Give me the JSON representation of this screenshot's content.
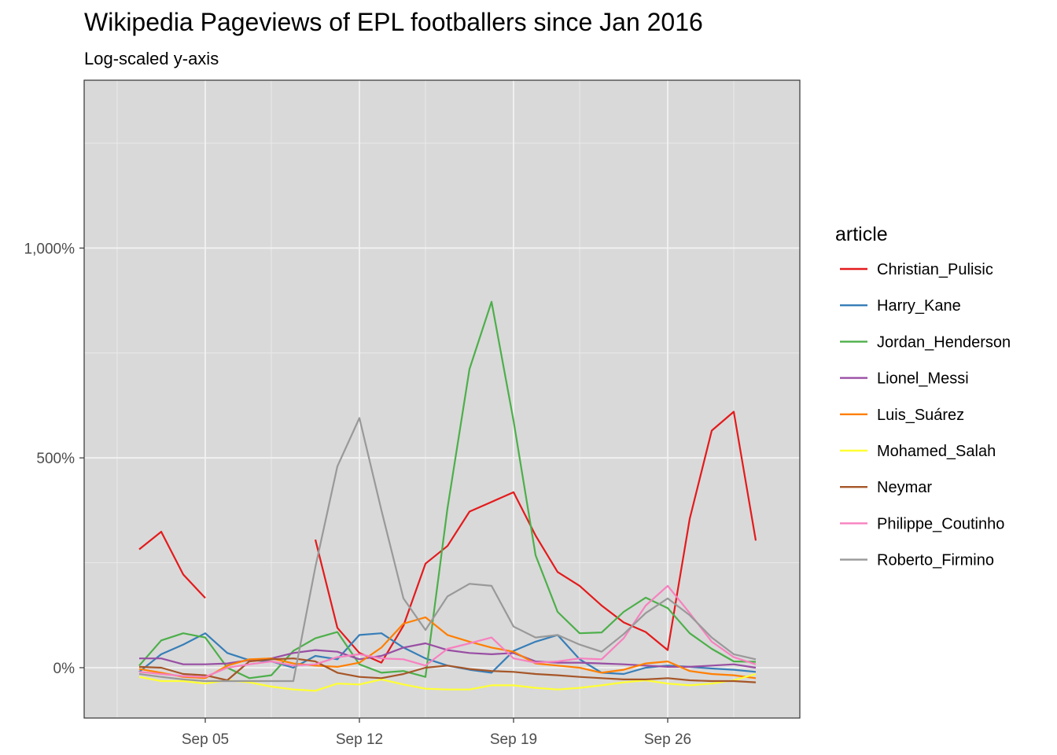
{
  "chart_data": {
    "type": "line",
    "title": "Wikipedia Pageviews of EPL footballers since Jan 2016",
    "subtitle": "Log-scaled y-axis",
    "xlabel": "",
    "ylabel": "",
    "x": [
      "2019-09-02",
      "2019-09-03",
      "2019-09-04",
      "2019-09-05",
      "2019-09-06",
      "2019-09-07",
      "2019-09-08",
      "2019-09-09",
      "2019-09-10",
      "2019-09-11",
      "2019-09-12",
      "2019-09-13",
      "2019-09-14",
      "2019-09-15",
      "2019-09-16",
      "2019-09-17",
      "2019-09-18",
      "2019-09-19",
      "2019-09-20",
      "2019-09-21",
      "2019-09-22",
      "2019-09-23",
      "2019-09-24",
      "2019-09-25",
      "2019-09-26",
      "2019-09-27",
      "2019-09-28",
      "2019-09-29",
      "2019-09-30"
    ],
    "x_ticks": [
      {
        "date": "2019-09-05",
        "label": "Sep 05"
      },
      {
        "date": "2019-09-12",
        "label": "Sep 12"
      },
      {
        "date": "2019-09-19",
        "label": "Sep 19"
      },
      {
        "date": "2019-09-26",
        "label": "Sep 26"
      }
    ],
    "x_minor_ticks": [
      "2019-09-01",
      "2019-09-08",
      "2019-09-15",
      "2019-09-22",
      "2019-09-29"
    ],
    "xlim": [
      "2019-08-30 12:00",
      "2019-10-02"
    ],
    "y_scale": "log",
    "y_ticks": [
      {
        "value": 0,
        "label": "0%"
      },
      {
        "value": 500,
        "label": "500%"
      },
      {
        "value": 1000,
        "label": "1,000%"
      }
    ],
    "y_minor_ticks": [
      250,
      750,
      1250
    ],
    "ylim": [
      -120,
      1400
    ],
    "grid": true,
    "legend": {
      "title": "article",
      "position": "right"
    },
    "series": [
      {
        "name": "Christian_Pulisic",
        "color": "#E41A1C",
        "values": [
          282,
          324,
          222,
          166,
          null,
          null,
          null,
          null,
          305,
          95,
          35,
          12,
          100,
          248,
          290,
          372,
          395,
          418,
          315,
          228,
          195,
          148,
          108,
          85,
          42,
          355,
          565,
          610,
          303
        ]
      },
      {
        "name": "Harry_Kane",
        "color": "#377EB8",
        "values": [
          -10,
          32,
          55,
          82,
          35,
          18,
          15,
          0,
          28,
          20,
          78,
          82,
          48,
          22,
          5,
          -5,
          -12,
          40,
          62,
          78,
          20,
          -12,
          -15,
          0,
          5,
          2,
          -2,
          -5,
          -10
        ]
      },
      {
        "name": "Jordan_Henderson",
        "color": "#4DAF4A",
        "values": [
          5,
          65,
          82,
          72,
          0,
          -25,
          -18,
          40,
          70,
          85,
          8,
          -12,
          -8,
          -22,
          380,
          712,
          872,
          588,
          268,
          133,
          82,
          84,
          133,
          167,
          142,
          82,
          45,
          15,
          14
        ]
      },
      {
        "name": "Lionel_Messi",
        "color": "#984EA3",
        "values": [
          22,
          22,
          8,
          8,
          10,
          18,
          22,
          35,
          42,
          38,
          20,
          28,
          48,
          58,
          42,
          35,
          32,
          35,
          15,
          12,
          12,
          10,
          8,
          5,
          2,
          2,
          5,
          8,
          0
        ]
      },
      {
        "name": "Luis_Suárez",
        "color": "#FF7F00",
        "values": [
          -3,
          -12,
          -22,
          -25,
          5,
          20,
          22,
          10,
          5,
          2,
          12,
          48,
          105,
          120,
          78,
          62,
          48,
          38,
          10,
          5,
          0,
          -12,
          -5,
          10,
          15,
          -8,
          -15,
          -18,
          -25
        ]
      },
      {
        "name": "Mohamed_Salah",
        "color": "#FFFF33",
        "values": [
          -22,
          -32,
          -32,
          -38,
          -30,
          -35,
          -45,
          -52,
          -55,
          -38,
          -40,
          -28,
          -40,
          -50,
          -52,
          -52,
          -42,
          -42,
          -48,
          -52,
          -48,
          -42,
          -35,
          -30,
          -38,
          -42,
          -38,
          -30,
          -15
        ]
      },
      {
        "name": "Neymar",
        "color": "#A65628",
        "values": [
          2,
          0,
          -15,
          -18,
          -30,
          15,
          20,
          22,
          15,
          -12,
          -22,
          -25,
          -15,
          0,
          5,
          -3,
          -8,
          -10,
          -15,
          -18,
          -22,
          -25,
          -28,
          -28,
          -25,
          -30,
          -32,
          -32,
          -35
        ]
      },
      {
        "name": "Philippe_Coutinho",
        "color": "#F781BF",
        "values": [
          -10,
          -15,
          -20,
          -22,
          0,
          8,
          15,
          5,
          8,
          25,
          32,
          22,
          20,
          5,
          45,
          58,
          72,
          22,
          12,
          15,
          22,
          20,
          70,
          148,
          195,
          130,
          62,
          25,
          8
        ]
      },
      {
        "name": "Roberto_Firmino",
        "color": "#999999",
        "values": [
          -15,
          -22,
          -28,
          -32,
          -32,
          -32,
          -32,
          -32,
          240,
          480,
          595,
          375,
          165,
          90,
          170,
          200,
          195,
          98,
          72,
          78,
          55,
          38,
          80,
          130,
          165,
          125,
          72,
          32,
          20
        ]
      }
    ]
  }
}
